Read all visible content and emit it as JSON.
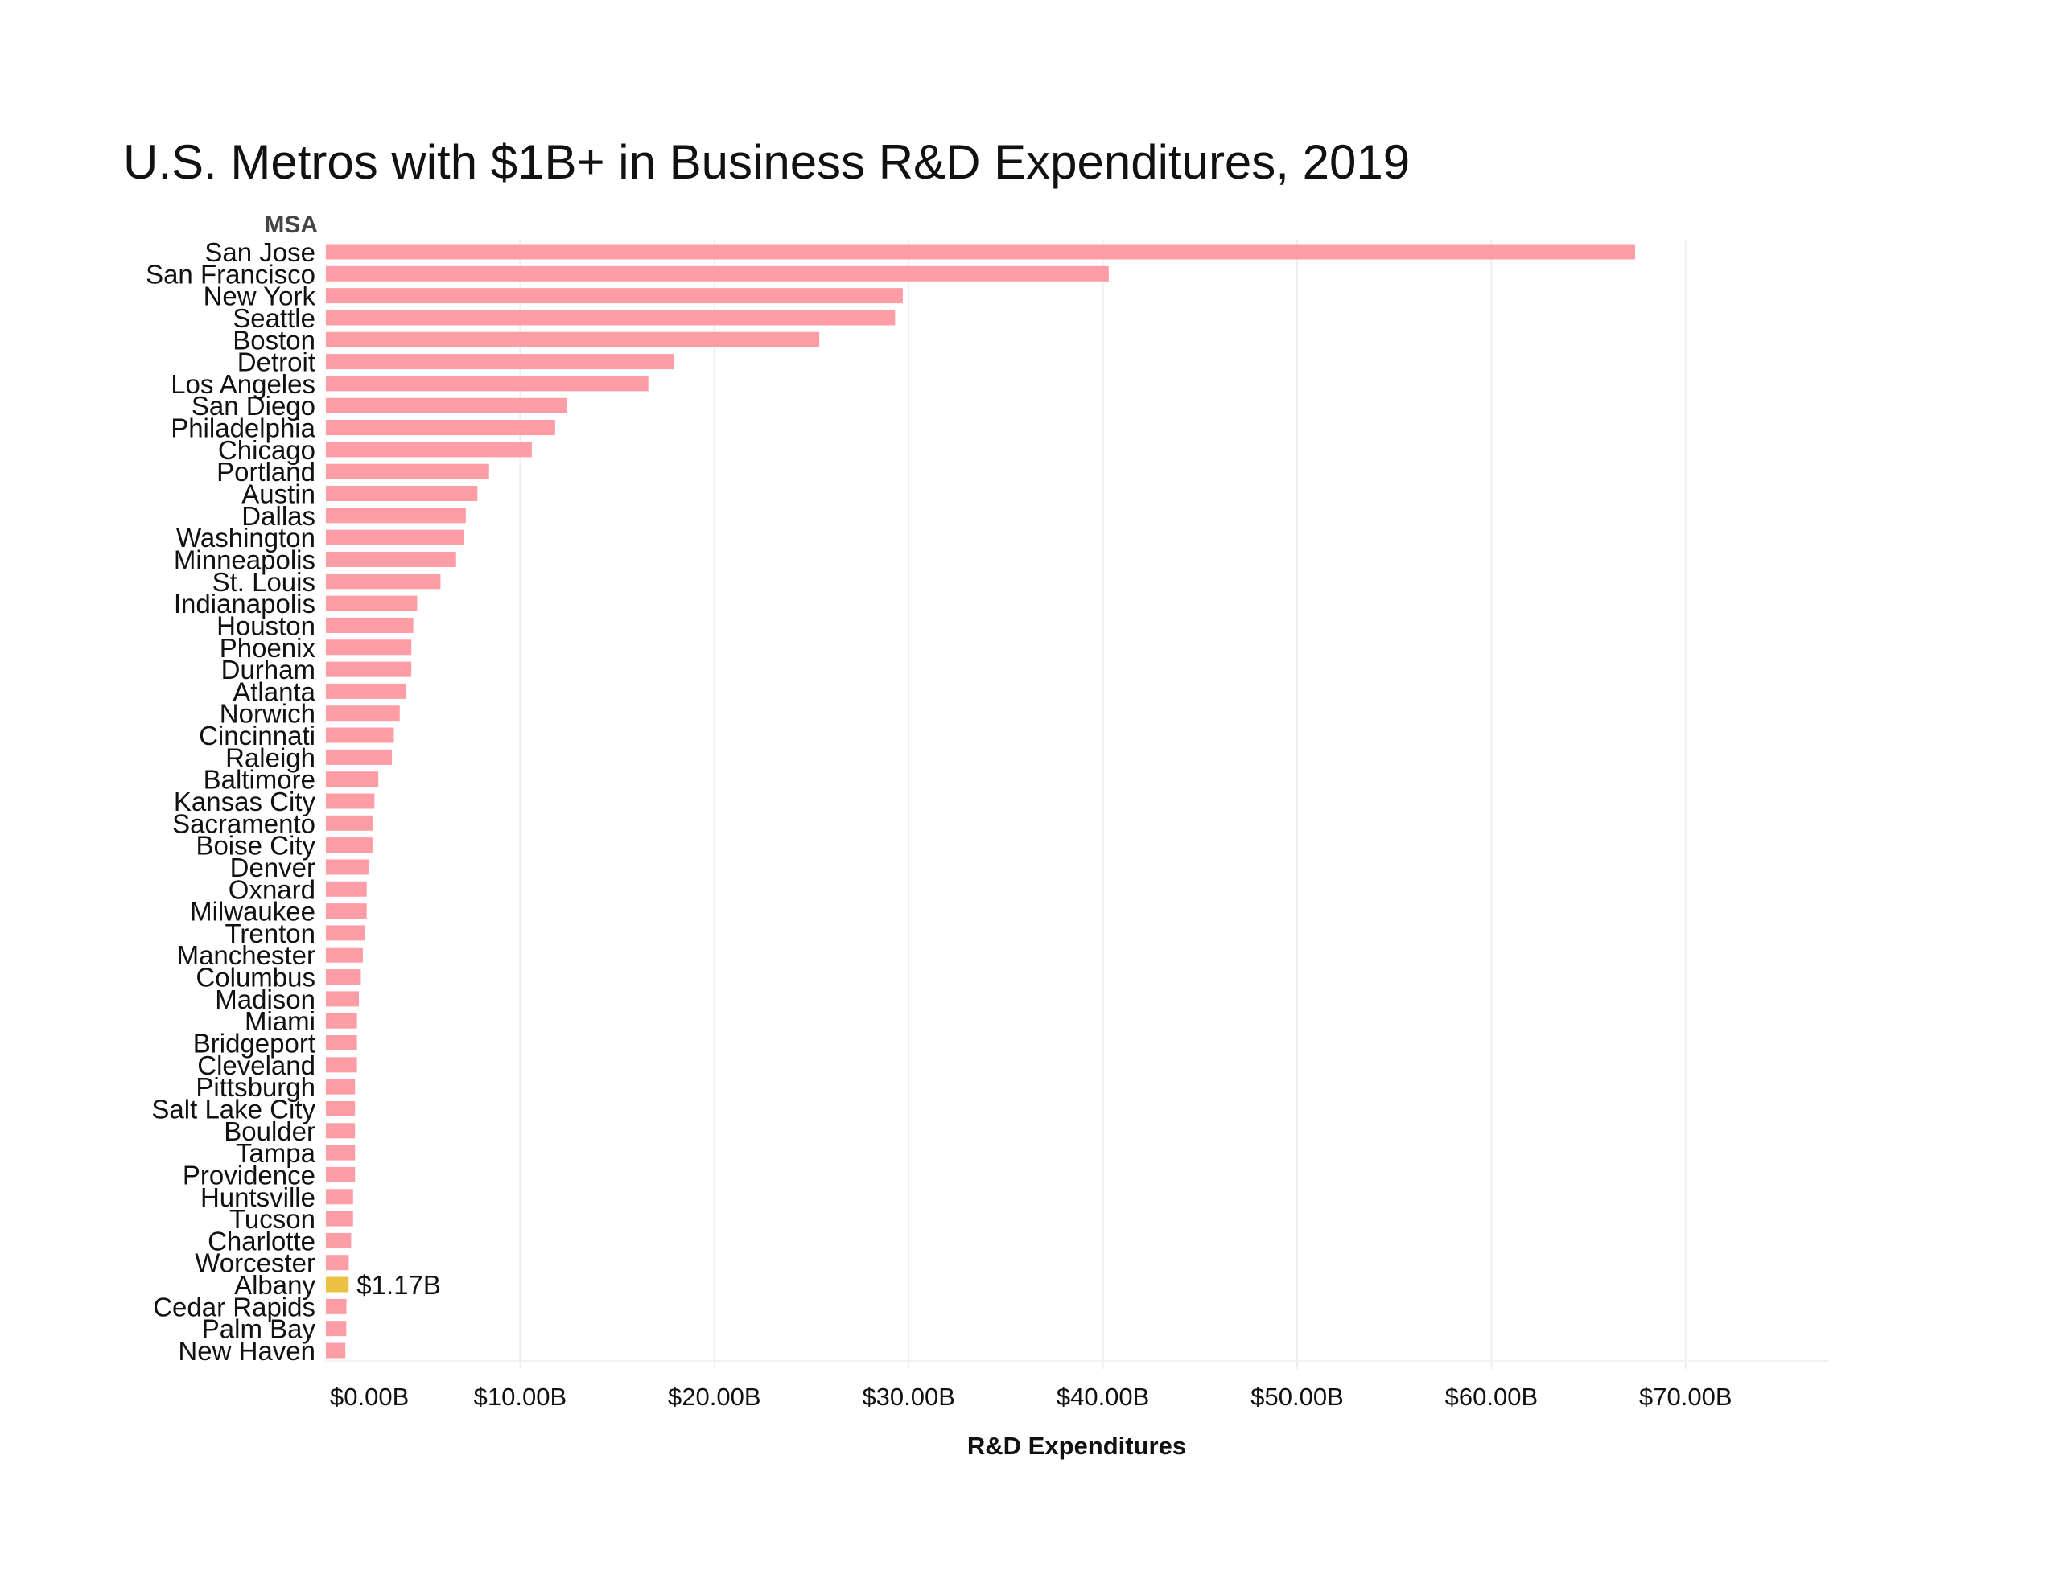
{
  "title": "U.S. Metros with $1B+ in Business R&D Expenditures, 2019",
  "colors": {
    "bar": "#ff9da7",
    "highlight": "#ebc244",
    "gridline": "#eeeeee"
  },
  "chart_data": {
    "type": "bar",
    "orientation": "horizontal",
    "title": "U.S. Metros with $1B+ in Business R&D Expenditures, 2019",
    "ylabel": "MSA",
    "xlabel": "R&D Expenditures",
    "xlim": [
      0,
      77
    ],
    "x_ticks": [
      0,
      10,
      20,
      30,
      40,
      50,
      60,
      70
    ],
    "x_tick_labels": [
      "$0.00B",
      "$10.00B",
      "$20.00B",
      "$30.00B",
      "$40.00B",
      "$50.00B",
      "$60.00B",
      "$70.00B"
    ],
    "grid": "vertical",
    "unit": "billions USD",
    "highlighted_category": "Albany",
    "annotations": [
      {
        "category": "Albany",
        "text": "$1.17B"
      }
    ],
    "categories": [
      "San Jose",
      "San Francisco",
      "New York",
      "Seattle",
      "Boston",
      "Detroit",
      "Los Angeles",
      "San Diego",
      "Philadelphia",
      "Chicago",
      "Portland",
      "Austin",
      "Dallas",
      "Washington",
      "Minneapolis",
      "St. Louis",
      "Indianapolis",
      "Houston",
      "Phoenix",
      "Durham",
      "Atlanta",
      "Norwich",
      "Cincinnati",
      "Raleigh",
      "Baltimore",
      "Kansas City",
      "Sacramento",
      "Boise City",
      "Denver",
      "Oxnard",
      "Milwaukee",
      "Trenton",
      "Manchester",
      "Columbus",
      "Madison",
      "Miami",
      "Bridgeport",
      "Cleveland",
      "Pittsburgh",
      "Salt Lake City",
      "Boulder",
      "Tampa",
      "Providence",
      "Huntsville",
      "Tucson",
      "Charlotte",
      "Worcester",
      "Albany",
      "Cedar Rapids",
      "Palm Bay",
      "New Haven"
    ],
    "values": [
      67.4,
      40.3,
      29.7,
      29.3,
      25.4,
      17.9,
      16.6,
      12.4,
      11.8,
      10.6,
      8.4,
      7.8,
      7.2,
      7.1,
      6.7,
      5.9,
      4.7,
      4.5,
      4.4,
      4.4,
      4.1,
      3.8,
      3.5,
      3.4,
      2.7,
      2.5,
      2.4,
      2.4,
      2.2,
      2.1,
      2.1,
      2.0,
      1.9,
      1.8,
      1.7,
      1.6,
      1.6,
      1.6,
      1.5,
      1.5,
      1.5,
      1.5,
      1.5,
      1.4,
      1.4,
      1.3,
      1.18,
      1.17,
      1.06,
      1.05,
      1.0
    ]
  }
}
